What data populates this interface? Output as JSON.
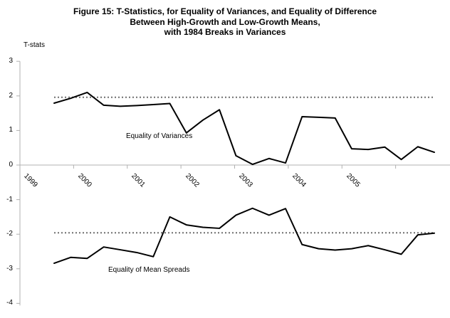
{
  "title": {
    "line1": "Figure 15: T-Statistics, for Equality of Variances, and Equality of Difference",
    "line2": "Between High-Growth and Low-Growth Means,",
    "line3": "with 1984 Breaks in Variances"
  },
  "chart_data": {
    "type": "line",
    "title": "Figure 15: T-Statistics, for Equality of Variances, and Equality of Difference Between High-Growth and Low-Growth Means, with 1984 Breaks in Variances",
    "ylabel": "T-stats",
    "xlabel": "",
    "ylim": [
      -4,
      3
    ],
    "y_ticks": [
      3,
      2,
      1,
      0,
      -1,
      -2,
      -3,
      -4
    ],
    "x_tick_labels": [
      "1999",
      "2000",
      "2001",
      "2002",
      "2003",
      "2004",
      "2005"
    ],
    "grid": false,
    "legend_position": "inline-annotations",
    "reference_lines": {
      "style": "dotted",
      "upper_critical_value": 1.96,
      "lower_critical_value": -1.96
    },
    "series": [
      {
        "name": "Equality of Variances",
        "values": [
          1.79,
          1.93,
          2.1,
          1.73,
          1.7,
          1.72,
          1.75,
          1.78,
          0.93,
          1.3,
          1.6,
          0.27,
          0.02,
          0.19,
          0.06,
          1.4,
          1.38,
          1.36,
          0.47,
          0.45,
          0.52,
          0.16,
          0.53,
          0.37
        ]
      },
      {
        "name": "Equality of Mean Spreads",
        "values": [
          -2.84,
          -2.67,
          -2.7,
          -2.37,
          -2.45,
          -2.53,
          -2.65,
          -1.5,
          -1.73,
          -1.8,
          -1.83,
          -1.45,
          -1.25,
          -1.45,
          -1.26,
          -2.3,
          -2.42,
          -2.46,
          -2.42,
          -2.33,
          -2.45,
          -2.58,
          -2.02,
          -1.97
        ]
      }
    ]
  },
  "colors": {
    "series_line": "#000000",
    "axis": "#b0b0b0",
    "reference_dotted": "#6f6f6f",
    "text": "#000000",
    "background": "#ffffff"
  }
}
